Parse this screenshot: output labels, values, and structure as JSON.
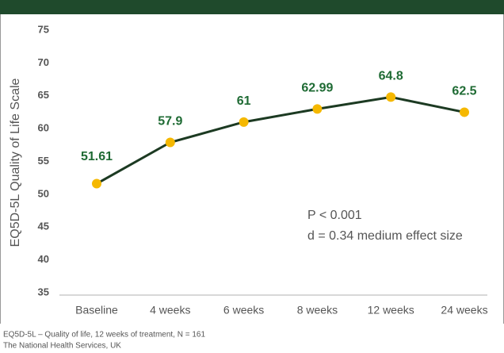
{
  "chart_data": {
    "type": "line",
    "y_axis_label": "EQ5D-5L Quality of Life Scale",
    "categories": [
      "Baseline",
      "4 weeks",
      "6 weeks",
      "8 weeks",
      "12 weeks",
      "24 weeks"
    ],
    "series": [
      {
        "name": "EQ5D-5L",
        "color": "#1c3a22",
        "marker_color": "#f5b800",
        "values": [
          51.61,
          57.9,
          61,
          62.99,
          64.8,
          62.5
        ]
      }
    ],
    "ylim": [
      35,
      75
    ],
    "yticks": [
      35,
      40,
      45,
      50,
      55,
      60,
      65,
      70,
      75
    ],
    "annotations": [
      "P < 0.001",
      "d = 0.34 medium effect size"
    ],
    "footnotes": [
      "EQ5D-5L – Quality of life, 12 weeks of treatment, N = 161",
      "The National Health Services, UK"
    ]
  }
}
